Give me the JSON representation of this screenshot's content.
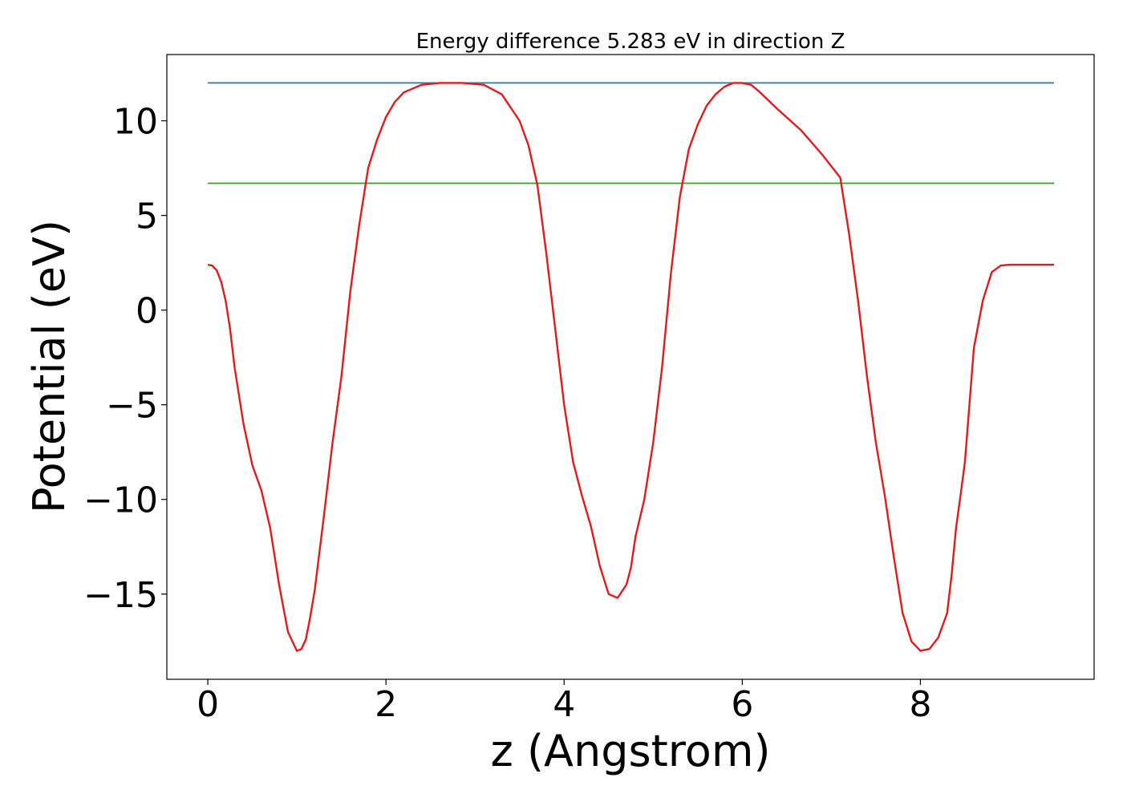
{
  "chart_data": {
    "type": "line",
    "title": "Energy difference 5.283 eV in direction Z",
    "xlabel": "z (Angstrom)",
    "ylabel": "Potential (eV)",
    "xlim": [
      -0.46,
      9.95
    ],
    "ylim": [
      -19.5,
      13.5
    ],
    "xticks": [
      0,
      2,
      4,
      6,
      8
    ],
    "yticks": [
      -15,
      -10,
      -5,
      0,
      5,
      10
    ],
    "grid": false,
    "colors": {
      "potential": "#e31a1c",
      "max_line": "#1f78b4",
      "average_line": "#33a02c"
    },
    "series": [
      {
        "key": "potential",
        "x": [
          0,
          0.05,
          0.1,
          0.15,
          0.2,
          0.25,
          0.3,
          0.4,
          0.5,
          0.6,
          0.7,
          0.8,
          0.9,
          1.0,
          1.05,
          1.1,
          1.15,
          1.2,
          1.3,
          1.4,
          1.5,
          1.6,
          1.7,
          1.8,
          1.9,
          2.0,
          2.1,
          2.2,
          2.4,
          2.6,
          2.86,
          3.1,
          3.3,
          3.5,
          3.6,
          3.7,
          3.8,
          3.9,
          4.0,
          4.1,
          4.2,
          4.3,
          4.4,
          4.5,
          4.6,
          4.7,
          4.75,
          4.8,
          4.9,
          5.0,
          5.1,
          5.2,
          5.3,
          5.4,
          5.5,
          5.6,
          5.7,
          5.8,
          5.9,
          6.0,
          6.1,
          6.2,
          6.4,
          6.66,
          6.9,
          7.1,
          7.2,
          7.3,
          7.4,
          7.5,
          7.6,
          7.7,
          7.8,
          7.9,
          8.0,
          8.1,
          8.2,
          8.3,
          8.35,
          8.4,
          8.45,
          8.5,
          8.55,
          8.6,
          8.7,
          8.8,
          8.9,
          9.0,
          9.1,
          9.2,
          9.3,
          9.35,
          9.4,
          9.45,
          9.5
        ],
        "values": [
          2.4,
          2.35,
          2.1,
          1.5,
          0.5,
          -1.0,
          -3.0,
          -6.0,
          -8.2,
          -9.5,
          -11.5,
          -14.5,
          -17.0,
          -18.0,
          -17.9,
          -17.4,
          -16.2,
          -14.8,
          -11.0,
          -7.0,
          -3.5,
          1.0,
          4.5,
          7.5,
          9.0,
          10.2,
          11.0,
          11.5,
          11.9,
          12.0,
          12.0,
          11.9,
          11.4,
          10.0,
          8.7,
          6.6,
          3.0,
          -1.0,
          -5.0,
          -8.0,
          -9.8,
          -11.4,
          -13.5,
          -15.0,
          -15.2,
          -14.5,
          -13.6,
          -12.0,
          -10.0,
          -7.0,
          -3.0,
          2.0,
          6.0,
          8.5,
          9.8,
          10.8,
          11.4,
          11.8,
          12.0,
          12.0,
          11.9,
          11.5,
          10.6,
          9.5,
          8.2,
          7.0,
          4.0,
          0.5,
          -3.5,
          -7.0,
          -9.8,
          -13.0,
          -16.0,
          -17.5,
          -18.0,
          -17.9,
          -17.3,
          -16.0,
          -14.0,
          -11.5,
          -9.8,
          -8.0,
          -5.0,
          -2.0,
          0.5,
          2.0,
          2.35,
          2.4,
          2.4,
          2.4,
          2.4,
          2.4,
          2.4,
          2.4,
          2.4
        ]
      },
      {
        "key": "max_line",
        "x": [
          0,
          9.5
        ],
        "values": [
          12.0,
          12.0
        ]
      },
      {
        "key": "average_line",
        "x": [
          0,
          9.5
        ],
        "values": [
          6.7,
          6.7
        ]
      }
    ]
  }
}
